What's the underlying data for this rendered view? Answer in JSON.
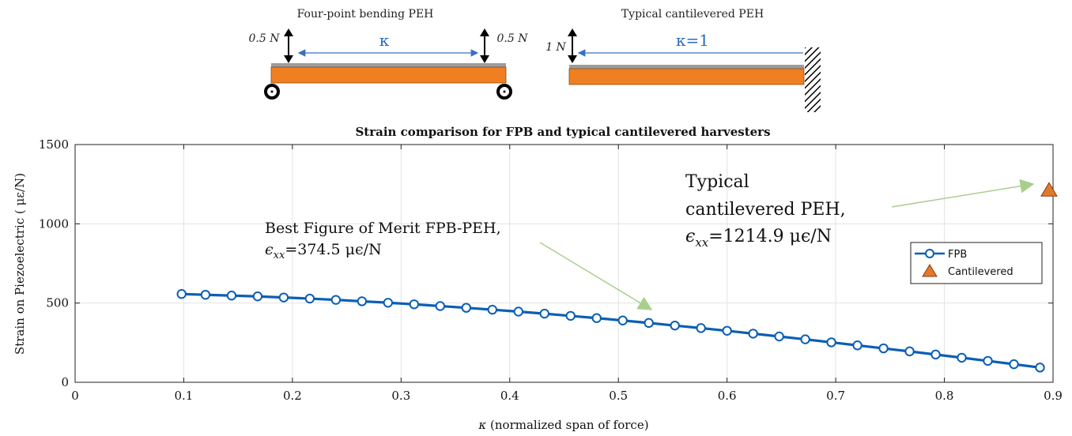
{
  "diagram": {
    "fpb_title": "Four-point bending PEH",
    "fpb_force_left": "0.5 N",
    "fpb_force_right": "0.5 N",
    "fpb_span_label": "κ",
    "cant_title": "Typical cantilevered PEH",
    "cant_force": "1 N",
    "cant_span_label": "κ=1",
    "colors": {
      "beam": "#f07f22",
      "layer": "#9c9c9c",
      "arrow": "#3a6fc4",
      "label": "#2a6bbf"
    }
  },
  "annotations": {
    "fpb_line1": "Best Figure of Merit FPB-PEH,",
    "fpb_line2_sym": "ϵ",
    "fpb_line2_sub": "xx",
    "fpb_line2_rest": "=374.5 μϵ/N",
    "cant_line1": "Typical",
    "cant_line2": "cantilevered PEH,",
    "cant_line3_sym": "ϵ",
    "cant_line3_sub": "xx",
    "cant_line3_rest": "=1214.9 μϵ/N",
    "arrow_color": "#a9cf8e"
  },
  "chart_data": {
    "type": "line",
    "title": "Strain comparison for FPB and typical cantilevered harvesters",
    "xlabel_sym": "κ",
    "xlabel_rest": " (normalized span of force)",
    "ylabel": "Strain on Piezoelectric ( με/N)",
    "xlim": [
      0,
      0.9
    ],
    "ylim": [
      0,
      1500
    ],
    "xticks": [
      0,
      0.1,
      0.2,
      0.3,
      0.4,
      0.5,
      0.6,
      0.7,
      0.8,
      0.9
    ],
    "xtick_labels": [
      "0",
      "0.1",
      "0.2",
      "0.3",
      "0.4",
      "0.5",
      "0.6",
      "0.7",
      "0.8",
      "0.9"
    ],
    "yticks": [
      0,
      500,
      1000,
      1500
    ],
    "ytick_labels": [
      "0",
      "500",
      "1000",
      "1500"
    ],
    "grid": true,
    "legend_position": "right",
    "series": [
      {
        "name": "FPB",
        "color": "#0a5fb4",
        "marker": "circle",
        "x": [
          0.098,
          0.12,
          0.144,
          0.168,
          0.192,
          0.216,
          0.24,
          0.264,
          0.288,
          0.312,
          0.336,
          0.36,
          0.384,
          0.408,
          0.432,
          0.456,
          0.48,
          0.504,
          0.528,
          0.552,
          0.576,
          0.6,
          0.624,
          0.648,
          0.672,
          0.696,
          0.72,
          0.744,
          0.768,
          0.792,
          0.816,
          0.84,
          0.864,
          0.888
        ],
        "y": [
          557,
          552,
          547,
          542,
          535,
          528,
          520,
          511,
          502,
          492,
          481,
          470,
          458,
          446,
          433,
          419,
          405,
          390,
          374.5,
          358,
          342,
          325,
          307,
          289,
          271,
          252,
          233,
          214,
          195,
          175,
          155,
          135,
          114,
          93
        ]
      },
      {
        "name": "Cantilevered",
        "color": "#e07a2a",
        "marker": "triangle",
        "x": [
          0.9
        ],
        "y": [
          1214.9
        ]
      }
    ]
  }
}
